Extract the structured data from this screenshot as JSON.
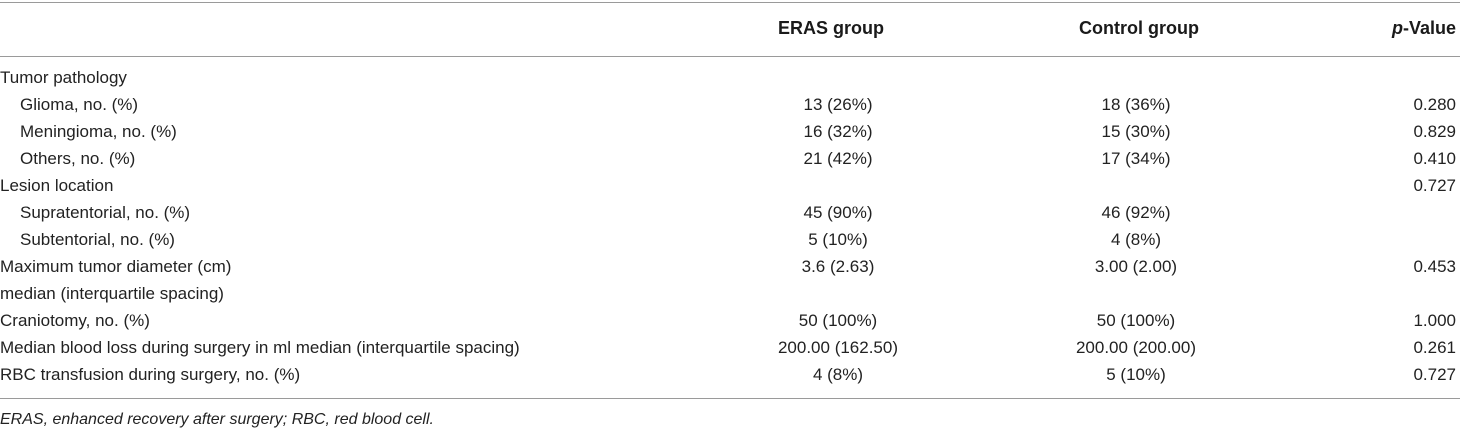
{
  "header": {
    "col_eras": "ERAS group",
    "col_control": "Control group",
    "col_p_prefix": "p",
    "col_p_suffix": "-Value"
  },
  "rows": [
    {
      "label": "Tumor pathology",
      "eras": "",
      "control": "",
      "p": ""
    },
    {
      "label": "Glioma, no. (%)",
      "eras": "13 (26%)",
      "control": "18 (36%)",
      "p": "0.280"
    },
    {
      "label": "Meningioma, no. (%)",
      "eras": "16 (32%)",
      "control": "15 (30%)",
      "p": "0.829"
    },
    {
      "label": "Others, no. (%)",
      "eras": "21 (42%)",
      "control": "17 (34%)",
      "p": "0.410"
    },
    {
      "label": "Lesion location",
      "eras": "",
      "control": "",
      "p": "0.727"
    },
    {
      "label": "Supratentorial, no. (%)",
      "eras": "45 (90%)",
      "control": "46 (92%)",
      "p": ""
    },
    {
      "label": "Subtentorial, no. (%)",
      "eras": "5 (10%)",
      "control": "4 (8%)",
      "p": ""
    },
    {
      "label": "Maximum tumor diameter (cm)",
      "label2": "median (interquartile spacing)",
      "eras": "3.6 (2.63)",
      "control": "3.00 (2.00)",
      "p": "0.453"
    },
    {
      "label": "Craniotomy, no. (%)",
      "eras": "50 (100%)",
      "control": "50 (100%)",
      "p": "1.000"
    },
    {
      "label": "Median blood loss during surgery in ml median (interquartile spacing)",
      "eras": "200.00 (162.50)",
      "control": "200.00 (200.00)",
      "p": "0.261"
    },
    {
      "label": "RBC transfusion during surgery, no. (%)",
      "eras": "4 (8%)",
      "control": "5 (10%)",
      "p": "0.727"
    }
  ],
  "footnote": "ERAS, enhanced recovery after surgery; RBC, red blood cell."
}
